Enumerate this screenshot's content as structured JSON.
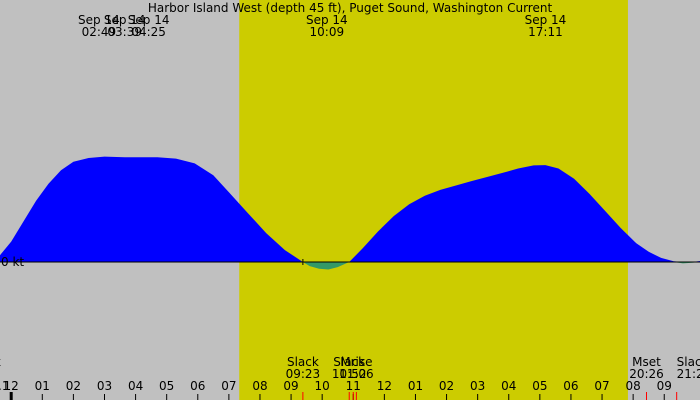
{
  "chart_data": {
    "type": "area",
    "title": "Harbor Island West (depth 45 ft), Puget Sound, Washington Current",
    "xlabel": "",
    "ylabel": "",
    "x_unit": "hour of day",
    "x_range": [
      -0.36,
      22.15
    ],
    "y_range": [
      -3.3,
      4.3
    ],
    "zero_label": "0 kt",
    "colors": {
      "background": "#c0c0c0",
      "daylight": "#cccc00",
      "flood": "#0000ff",
      "ebb": "#339966",
      "marker": "#ff0000"
    },
    "daylight": {
      "start": "07:20",
      "end": "19:50"
    },
    "series": [
      {
        "points": [
          [
            -0.36,
            0.2
          ],
          [
            0,
            0.6
          ],
          [
            0.4,
            1.2
          ],
          [
            0.8,
            1.8
          ],
          [
            1.2,
            2.3
          ],
          [
            1.6,
            2.7
          ],
          [
            2.0,
            2.95
          ],
          [
            2.49,
            3.06
          ],
          [
            3.0,
            3.1
          ],
          [
            3.65,
            3.08
          ],
          [
            4.2,
            3.08
          ],
          [
            4.7,
            3.08
          ],
          [
            5.3,
            3.04
          ],
          [
            5.9,
            2.9
          ],
          [
            6.5,
            2.55
          ],
          [
            7.0,
            2.05
          ],
          [
            7.6,
            1.45
          ],
          [
            8.2,
            0.85
          ],
          [
            8.8,
            0.35
          ],
          [
            9.38,
            0.0
          ],
          [
            9.6,
            -0.12
          ],
          [
            9.9,
            -0.2
          ],
          [
            10.2,
            -0.22
          ],
          [
            10.5,
            -0.15
          ],
          [
            10.87,
            0.0
          ],
          [
            11.3,
            0.4
          ],
          [
            11.8,
            0.9
          ],
          [
            12.3,
            1.35
          ],
          [
            12.8,
            1.7
          ],
          [
            13.3,
            1.95
          ],
          [
            13.8,
            2.12
          ],
          [
            14.3,
            2.25
          ],
          [
            14.8,
            2.38
          ],
          [
            15.3,
            2.5
          ],
          [
            15.8,
            2.62
          ],
          [
            16.3,
            2.75
          ],
          [
            16.8,
            2.84
          ],
          [
            17.18,
            2.85
          ],
          [
            17.6,
            2.75
          ],
          [
            18.1,
            2.45
          ],
          [
            18.6,
            2.0
          ],
          [
            19.1,
            1.5
          ],
          [
            19.6,
            1.0
          ],
          [
            20.1,
            0.55
          ],
          [
            20.5,
            0.3
          ],
          [
            20.9,
            0.12
          ],
          [
            21.3,
            0.02
          ],
          [
            21.6,
            -0.04
          ],
          [
            21.9,
            -0.02
          ],
          [
            22.15,
            0.03
          ]
        ]
      }
    ],
    "top_events": [
      {
        "date": "Sep 14",
        "time": "02:49",
        "hour": 2.82
      },
      {
        "date": "Sep 14",
        "time": "03:39",
        "hour": 3.65
      },
      {
        "date": "Sep 14",
        "time": "04:25",
        "hour": 4.42
      },
      {
        "date": "Sep 14",
        "time": "10:09",
        "hour": 10.15
      },
      {
        "date": "Sep 14",
        "time": "17:11",
        "hour": 17.18
      }
    ],
    "bottom_events": [
      {
        "label": "k",
        "time": "",
        "hour": -0.36,
        "partial": true
      },
      {
        "label": "Slack",
        "time": "09:23",
        "hour": 9.38
      },
      {
        "label": "Slack",
        "time": "10:52",
        "hour": 10.87
      },
      {
        "label": "Mrise",
        "time": "11:06",
        "hour": 11.1
      },
      {
        "label": "Mset",
        "time": "20:26",
        "hour": 20.43
      },
      {
        "label": "Slac",
        "time": "21:2",
        "hour": 21.4,
        "partial": true
      }
    ],
    "x_ticks": [
      {
        "label": ".1",
        "hour": -0.36,
        "partial": true
      },
      {
        "label": "12",
        "hour": 0
      },
      {
        "label": "01",
        "hour": 1
      },
      {
        "label": "02",
        "hour": 2
      },
      {
        "label": "03",
        "hour": 3
      },
      {
        "label": "04",
        "hour": 4
      },
      {
        "label": "05",
        "hour": 5
      },
      {
        "label": "06",
        "hour": 6
      },
      {
        "label": "07",
        "hour": 7
      },
      {
        "label": "08",
        "hour": 8
      },
      {
        "label": "09",
        "hour": 9
      },
      {
        "label": "10",
        "hour": 10
      },
      {
        "label": "11",
        "hour": 11
      },
      {
        "label": "12",
        "hour": 12
      },
      {
        "label": "01",
        "hour": 13
      },
      {
        "label": "02",
        "hour": 14
      },
      {
        "label": "03",
        "hour": 15
      },
      {
        "label": "04",
        "hour": 16
      },
      {
        "label": "05",
        "hour": 17
      },
      {
        "label": "06",
        "hour": 18
      },
      {
        "label": "07",
        "hour": 19
      },
      {
        "label": "08",
        "hour": 20
      },
      {
        "label": "09",
        "hour": 21
      }
    ],
    "event_markers": [
      9.38,
      10.87,
      11.0,
      11.1,
      20.43,
      21.4
    ],
    "midnight_marker": 0,
    "max_flood_point": 9.38
  }
}
